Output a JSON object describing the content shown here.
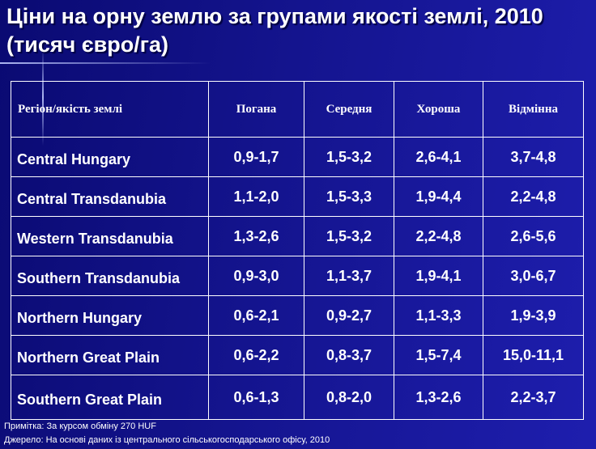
{
  "title": "Ціни на орну землю за групами якості землі, 2010 (тисяч євро/га)",
  "table": {
    "headers": [
      "Регіон/якість землі",
      "Погана",
      "Середня",
      "Хороша",
      "Відмінна"
    ],
    "rows": [
      {
        "region": "Central Hungary",
        "poor": "0,9-1,7",
        "medium": "1,5-3,2",
        "good": "2,6-4,1",
        "excellent": "3,7-4,8"
      },
      {
        "region": "Central Transdanubia",
        "poor": "1,1-2,0",
        "medium": "1,5-3,3",
        "good": "1,9-4,4",
        "excellent": "2,2-4,8"
      },
      {
        "region": "Western Transdanubia",
        "poor": "1,3-2,6",
        "medium": "1,5-3,2",
        "good": "2,2-4,8",
        "excellent": "2,6-5,6"
      },
      {
        "region": "Southern Transdanubia",
        "poor": "0,9-3,0",
        "medium": "1,1-3,7",
        "good": "1,9-4,1",
        "excellent": "3,0-6,7"
      },
      {
        "region": "Northern Hungary",
        "poor": "0,6-2,1",
        "medium": "0,9-2,7",
        "good": "1,1-3,3",
        "excellent": "1,9-3,9"
      },
      {
        "region": "Northern Great Plain",
        "poor": "0,6-2,2",
        "medium": "0,8-3,7",
        "good": "1,5-7,4",
        "excellent": "15,0-11,1"
      },
      {
        "region": "Southern Great Plain",
        "poor": "0,6-1,3",
        "medium": "0,8-2,0",
        "good": "1,3-2,6",
        "excellent": "2,2-3,7"
      }
    ]
  },
  "notes": {
    "note": "Примітка: За курсом обміну 270  HUF",
    "source": "Джерело: На основі даних із центрального сільськогосподарського офісу, 2010"
  },
  "colors": {
    "background_dark": "#0a0a72",
    "background_light": "#1e1eae",
    "text": "#ffffff"
  }
}
